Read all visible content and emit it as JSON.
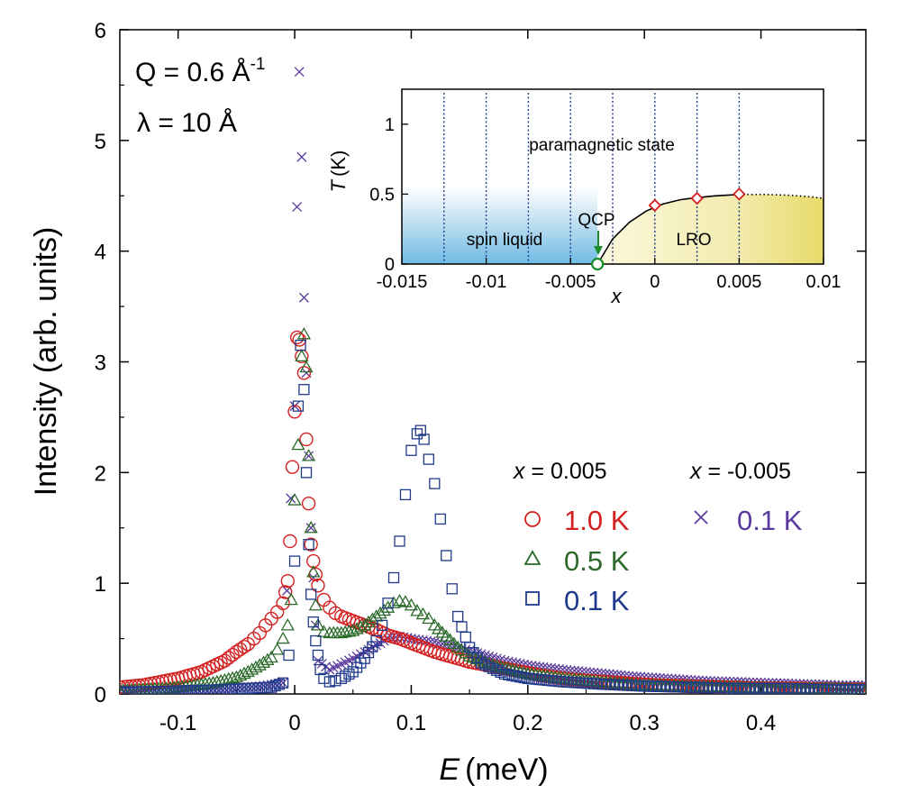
{
  "chart_data": [
    {
      "type": "scatter",
      "xlabel_var": "E",
      "xlabel_unit": "(meV)",
      "ylabel": "Intensity (arb. units)",
      "xlim": [
        -0.15,
        0.49
      ],
      "ylim": [
        0,
        6
      ],
      "x_ticks": [
        -0.1,
        0,
        0.1,
        0.2,
        0.3,
        0.4
      ],
      "x_tick_labels": [
        "-0.1",
        "0",
        "0.1",
        "0.2",
        "0.3",
        "0.4"
      ],
      "y_ticks": [
        0,
        1,
        2,
        3,
        4,
        5,
        6
      ],
      "y_tick_labels": [
        "0",
        "1",
        "2",
        "3",
        "4",
        "5",
        "6"
      ],
      "annotations": {
        "q_prefix": "Q = 0.6 Å",
        "q_exp": "-1",
        "lambda_text": "λ = 10 Å"
      },
      "legend": {
        "group1_var": "x",
        "group1_value": " = 0.005",
        "group2_var": "x",
        "group2_value": " = -0.005"
      },
      "series": [
        {
          "name": "1.0 K",
          "group": "x = 0.005",
          "marker": "circle",
          "color": "#d42020",
          "x": [
            -0.15,
            -0.14,
            -0.13,
            -0.12,
            -0.11,
            -0.1,
            -0.09,
            -0.08,
            -0.07,
            -0.06,
            -0.05,
            -0.04,
            -0.035,
            -0.03,
            -0.025,
            -0.02,
            -0.015,
            -0.01,
            -0.008,
            -0.006,
            -0.004,
            -0.002,
            0.0,
            0.002,
            0.004,
            0.006,
            0.008,
            0.01,
            0.012,
            0.014,
            0.016,
            0.018,
            0.02,
            0.025,
            0.03,
            0.035,
            0.04,
            0.05,
            0.06,
            0.07,
            0.08,
            0.09,
            0.1,
            0.11,
            0.12,
            0.13,
            0.14,
            0.15,
            0.17,
            0.19,
            0.21,
            0.23,
            0.25,
            0.28,
            0.31,
            0.34,
            0.37,
            0.4,
            0.43,
            0.46,
            0.49
          ],
          "y": [
            0.06,
            0.07,
            0.08,
            0.1,
            0.12,
            0.14,
            0.17,
            0.2,
            0.25,
            0.3,
            0.38,
            0.45,
            0.5,
            0.55,
            0.62,
            0.68,
            0.74,
            0.82,
            0.92,
            1.02,
            1.38,
            2.05,
            2.55,
            3.22,
            3.2,
            3.05,
            2.9,
            2.3,
            1.72,
            1.35,
            1.2,
            1.08,
            0.98,
            0.85,
            0.78,
            0.73,
            0.7,
            0.66,
            0.62,
            0.58,
            0.53,
            0.5,
            0.46,
            0.42,
            0.38,
            0.35,
            0.32,
            0.29,
            0.25,
            0.21,
            0.17,
            0.14,
            0.12,
            0.1,
            0.08,
            0.07,
            0.06,
            0.05,
            0.05,
            0.04,
            0.04
          ]
        },
        {
          "name": "0.5 K",
          "group": "x = 0.005",
          "marker": "triangle",
          "color": "#2b6a2b",
          "x": [
            -0.15,
            -0.13,
            -0.11,
            -0.09,
            -0.07,
            -0.05,
            -0.04,
            -0.03,
            -0.02,
            -0.015,
            -0.01,
            -0.006,
            -0.003,
            0.0,
            0.003,
            0.006,
            0.008,
            0.01,
            0.012,
            0.014,
            0.016,
            0.018,
            0.02,
            0.025,
            0.03,
            0.04,
            0.05,
            0.06,
            0.07,
            0.08,
            0.085,
            0.09,
            0.095,
            0.1,
            0.105,
            0.11,
            0.115,
            0.12,
            0.13,
            0.14,
            0.15,
            0.17,
            0.2,
            0.23,
            0.26,
            0.3,
            0.34,
            0.38,
            0.42,
            0.46,
            0.49
          ],
          "y": [
            0.03,
            0.04,
            0.05,
            0.07,
            0.1,
            0.15,
            0.2,
            0.26,
            0.33,
            0.4,
            0.5,
            0.62,
            0.85,
            1.75,
            2.25,
            3.05,
            3.25,
            2.95,
            2.15,
            1.5,
            1.1,
            0.8,
            0.62,
            0.56,
            0.55,
            0.55,
            0.57,
            0.62,
            0.7,
            0.78,
            0.82,
            0.84,
            0.83,
            0.8,
            0.75,
            0.72,
            0.68,
            0.62,
            0.52,
            0.42,
            0.34,
            0.26,
            0.18,
            0.14,
            0.11,
            0.08,
            0.07,
            0.06,
            0.05,
            0.05,
            0.04
          ]
        },
        {
          "name": "0.1 K",
          "group": "x = 0.005",
          "marker": "square",
          "color": "#1f3a8c",
          "x": [
            -0.15,
            -0.12,
            -0.09,
            -0.06,
            -0.04,
            -0.02,
            -0.01,
            -0.005,
            0.0,
            0.003,
            0.005,
            0.008,
            0.01,
            0.012,
            0.014,
            0.016,
            0.018,
            0.02,
            0.022,
            0.025,
            0.03,
            0.035,
            0.04,
            0.05,
            0.06,
            0.07,
            0.075,
            0.08,
            0.085,
            0.09,
            0.095,
            0.1,
            0.105,
            0.108,
            0.111,
            0.115,
            0.12,
            0.125,
            0.13,
            0.135,
            0.14,
            0.15,
            0.16,
            0.18,
            0.2,
            0.23,
            0.26,
            0.3,
            0.34,
            0.38,
            0.42,
            0.46,
            0.49
          ],
          "y": [
            0.02,
            0.02,
            0.03,
            0.04,
            0.05,
            0.06,
            0.1,
            0.35,
            1.2,
            2.6,
            3.15,
            2.75,
            2.0,
            1.35,
            0.9,
            0.65,
            0.48,
            0.35,
            0.22,
            0.14,
            0.11,
            0.12,
            0.14,
            0.2,
            0.32,
            0.48,
            0.62,
            0.82,
            1.05,
            1.38,
            1.8,
            2.2,
            2.35,
            2.38,
            2.3,
            2.12,
            1.9,
            1.58,
            1.25,
            0.95,
            0.7,
            0.42,
            0.28,
            0.18,
            0.14,
            0.11,
            0.09,
            0.07,
            0.06,
            0.05,
            0.05,
            0.04,
            0.04
          ]
        },
        {
          "name": "0.1 K",
          "group": "x = -0.005",
          "marker": "cross",
          "color": "#5a3a9c",
          "x": [
            -0.15,
            -0.12,
            -0.09,
            -0.06,
            -0.03,
            -0.01,
            0.0,
            0.002,
            0.004,
            0.006,
            0.008,
            0.01,
            0.012,
            0.014,
            0.016,
            0.018,
            0.02,
            0.03,
            0.04,
            0.05,
            0.06,
            0.07,
            0.08,
            0.09,
            0.1,
            0.12,
            0.14,
            0.16,
            0.18,
            0.2,
            0.23,
            0.26,
            0.29,
            0.32,
            0.35,
            0.38,
            0.41,
            0.44,
            0.47,
            0.49
          ],
          "y": [
            0.02,
            0.03,
            0.04,
            0.05,
            0.07,
            0.1,
            2.6,
            4.4,
            5.62,
            4.85,
            3.58,
            2.9,
            2.15,
            1.5,
            1.05,
            0.62,
            0.3,
            0.22,
            0.27,
            0.32,
            0.38,
            0.44,
            0.5,
            0.52,
            0.5,
            0.47,
            0.42,
            0.36,
            0.3,
            0.26,
            0.22,
            0.19,
            0.16,
            0.14,
            0.12,
            0.11,
            0.1,
            0.09,
            0.08,
            0.08
          ]
        }
      ]
    },
    {
      "type": "scatter",
      "xlabel": "x",
      "ylabel_var": "T",
      "ylabel_unit": "(K)",
      "xlim": [
        -0.015,
        0.01
      ],
      "ylim": [
        0,
        1.25
      ],
      "x_ticks": [
        -0.015,
        -0.01,
        -0.005,
        0,
        0.005,
        0.01
      ],
      "x_tick_labels": [
        "-0.015",
        "-0.01",
        "-0.005",
        "0",
        "0.005",
        "0.01"
      ],
      "y_ticks": [
        0,
        0.5,
        1
      ],
      "y_tick_labels": [
        "0",
        "0.5",
        "1"
      ],
      "vertical_lines_x": [
        -0.0125,
        -0.01,
        -0.0075,
        -0.005,
        -0.0025,
        0,
        0.0025,
        0.005
      ],
      "regions": {
        "paramagnetic": "paramagnetic state",
        "spin_liquid": "spin liquid",
        "lro": "LRO",
        "qcp": "QCP"
      },
      "qcp_x": -0.0034,
      "points": {
        "x": [
          0,
          0.0025,
          0.005
        ],
        "y": [
          0.42,
          0.47,
          0.5
        ],
        "marker": "diamond",
        "color": "#d42020"
      },
      "boundary_solid": {
        "x": [
          -0.0034,
          -0.0025,
          -0.0015,
          -0.0005,
          0.0005,
          0.0015,
          0.0025,
          0.0035,
          0.0045,
          0.005
        ],
        "y": [
          0,
          0.18,
          0.3,
          0.38,
          0.43,
          0.46,
          0.475,
          0.487,
          0.494,
          0.497
        ]
      },
      "boundary_dotted": {
        "x": [
          0.005,
          0.0065,
          0.008,
          0.009,
          0.01
        ],
        "y": [
          0.497,
          0.498,
          0.492,
          0.483,
          0.47
        ]
      }
    }
  ]
}
